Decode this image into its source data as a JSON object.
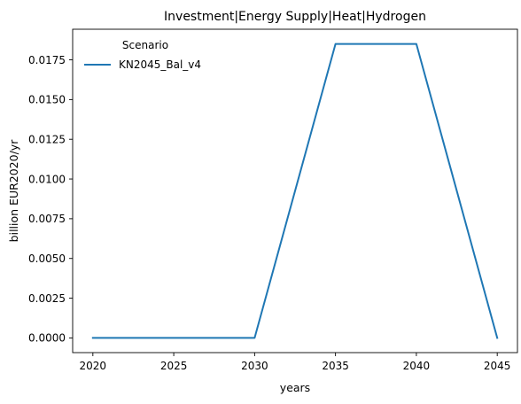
{
  "chart_data": {
    "type": "line",
    "title": "Investment|Energy Supply|Heat|Hydrogen",
    "xlabel": "years",
    "ylabel": "billion EUR2020/yr",
    "x": [
      2020,
      2025,
      2030,
      2035,
      2040,
      2045
    ],
    "series": [
      {
        "name": "KN2045_Bal_v4",
        "values": [
          0.0,
          0.0,
          0.0,
          0.0185,
          0.0185,
          0.0
        ],
        "color": "#1f77b4"
      }
    ],
    "xlim": [
      2018.75,
      2046.25
    ],
    "ylim": [
      -0.000925,
      0.019425
    ],
    "xticks": [
      2020,
      2025,
      2030,
      2035,
      2040,
      2045
    ],
    "xtick_labels": [
      "2020",
      "2025",
      "2030",
      "2035",
      "2040",
      "2045"
    ],
    "yticks": [
      0.0,
      0.0025,
      0.005,
      0.0075,
      0.01,
      0.0125,
      0.015,
      0.0175
    ],
    "ytick_labels": [
      "0.0000",
      "0.0025",
      "0.0050",
      "0.0075",
      "0.0100",
      "0.0125",
      "0.0150",
      "0.0175"
    ],
    "grid": false,
    "legend": {
      "title": "Scenario",
      "placement": "top-left"
    }
  }
}
